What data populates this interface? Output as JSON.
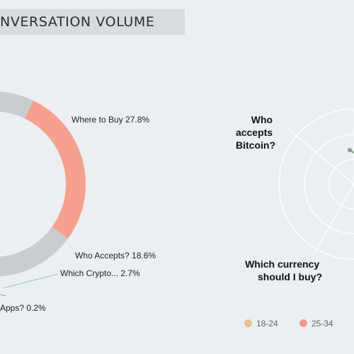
{
  "header": {
    "title": "NVERSATION VOLUME"
  },
  "chart_data": [
    {
      "type": "pie",
      "slices": [
        {
          "label": "Where to Buy",
          "value": 27.8,
          "color": "#f6a090",
          "display": "Where to Buy 27.8%"
        },
        {
          "label": "Who Accepts?",
          "value": 18.6,
          "color": "#c8cecf",
          "display": "Who Accepts? 18.6%"
        },
        {
          "label": "Which Crypto...",
          "value": 2.7,
          "color": "#6fbf9e",
          "display": "Which Crypto... 2.7%"
        },
        {
          "label": "Apps?",
          "value": 0.2,
          "color": "#4a8fb5",
          "display": "Apps? 0.2%"
        }
      ]
    },
    {
      "type": "radar",
      "axes": [
        "Who accepts Bitcoin?",
        "Which currency should I buy?"
      ],
      "axis_labels": {
        "who_accepts": [
          "Who",
          "accepts",
          "Bitcoin?"
        ],
        "which_currency": [
          "Which currency",
          "should I buy?"
        ]
      },
      "legend": [
        {
          "label": "18-24",
          "color": "#e8c08f"
        },
        {
          "label": "25-34",
          "color": "#f39a8f"
        }
      ]
    }
  ]
}
